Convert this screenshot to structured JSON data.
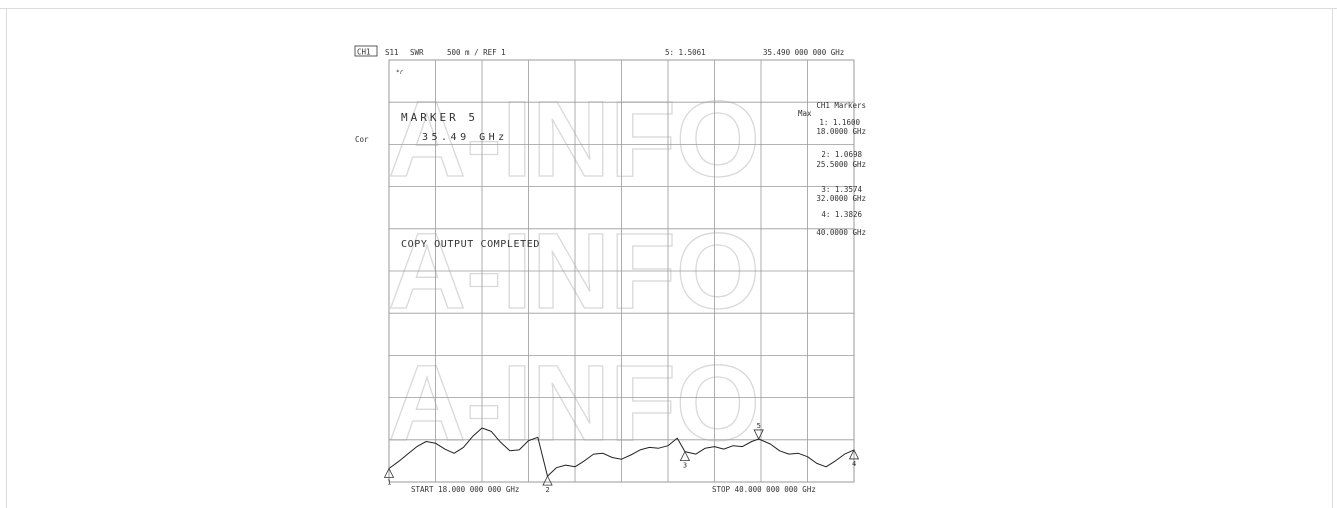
{
  "header": {
    "channel": "CH1",
    "param": "S11",
    "format": "SWR",
    "scale": "500 m / REF 1",
    "active_marker_readout": "5: 1.5061",
    "active_marker_freq": "35.490 000 000 GHz"
  },
  "side": {
    "correction": "Cor"
  },
  "overlay": {
    "marker_title": "MARKER  5",
    "marker_freq": "35.49  GHz",
    "copy_status": "COPY OUTPUT COMPLETED",
    "corner_symbol": "*r"
  },
  "marker_table": {
    "title": "CH1 Markers",
    "mode": "Max",
    "entries": [
      {
        "value": "1: 1.1600",
        "freq": "18.0000 GHz"
      },
      {
        "value": "2: 1.0698",
        "freq": "25.5000 GHz"
      },
      {
        "value": "3: 1.3574",
        "freq": "32.0000 GHz"
      },
      {
        "value": "4: 1.3826",
        "freq": "40.0000 GHz"
      }
    ]
  },
  "footer": {
    "start": "START 18.000 000 000 GHz",
    "stop": "STOP 40.000 000 000 GHz"
  },
  "watermark": "A-INFO",
  "colors": {
    "grid": "#9a9a9a",
    "trace": "#222222",
    "watermark": "#d9d9d9"
  },
  "chart_data": {
    "type": "line",
    "title": "S11 SWR",
    "xlabel": "",
    "ylabel": "",
    "xlim": [
      18,
      40
    ],
    "ylim": [
      1,
      6
    ],
    "grid": true,
    "x": [
      18.0,
      18.44,
      18.88,
      19.32,
      19.76,
      20.2,
      20.64,
      21.08,
      21.52,
      21.96,
      22.4,
      22.84,
      23.28,
      23.72,
      24.16,
      24.6,
      25.04,
      25.5,
      25.92,
      26.36,
      26.8,
      27.24,
      27.68,
      28.12,
      28.56,
      29.0,
      29.44,
      29.88,
      30.32,
      30.76,
      31.2,
      31.64,
      32.0,
      32.52,
      32.96,
      33.4,
      33.84,
      34.28,
      34.72,
      35.16,
      35.49,
      36.04,
      36.48,
      36.92,
      37.36,
      37.8,
      38.24,
      38.68,
      39.12,
      39.56,
      40.0
    ],
    "series": [
      {
        "values": [
          1.16,
          1.24,
          1.33,
          1.42,
          1.48,
          1.46,
          1.39,
          1.34,
          1.41,
          1.54,
          1.64,
          1.6,
          1.47,
          1.37,
          1.38,
          1.49,
          1.53,
          1.07,
          1.17,
          1.2,
          1.18,
          1.25,
          1.33,
          1.34,
          1.29,
          1.27,
          1.32,
          1.38,
          1.41,
          1.4,
          1.43,
          1.52,
          1.36,
          1.33,
          1.4,
          1.42,
          1.39,
          1.43,
          1.42,
          1.48,
          1.51,
          1.45,
          1.37,
          1.33,
          1.34,
          1.3,
          1.22,
          1.18,
          1.25,
          1.33,
          1.38
        ]
      }
    ],
    "markers": [
      {
        "id": "1",
        "x": 18.0,
        "y": 1.16,
        "dir": "up"
      },
      {
        "id": "2",
        "x": 25.5,
        "y": 1.07,
        "dir": "up"
      },
      {
        "id": "3",
        "x": 32.0,
        "y": 1.36,
        "dir": "up"
      },
      {
        "id": "4",
        "x": 40.0,
        "y": 1.38,
        "dir": "up"
      },
      {
        "id": "5",
        "x": 35.49,
        "y": 1.51,
        "dir": "down"
      }
    ]
  }
}
